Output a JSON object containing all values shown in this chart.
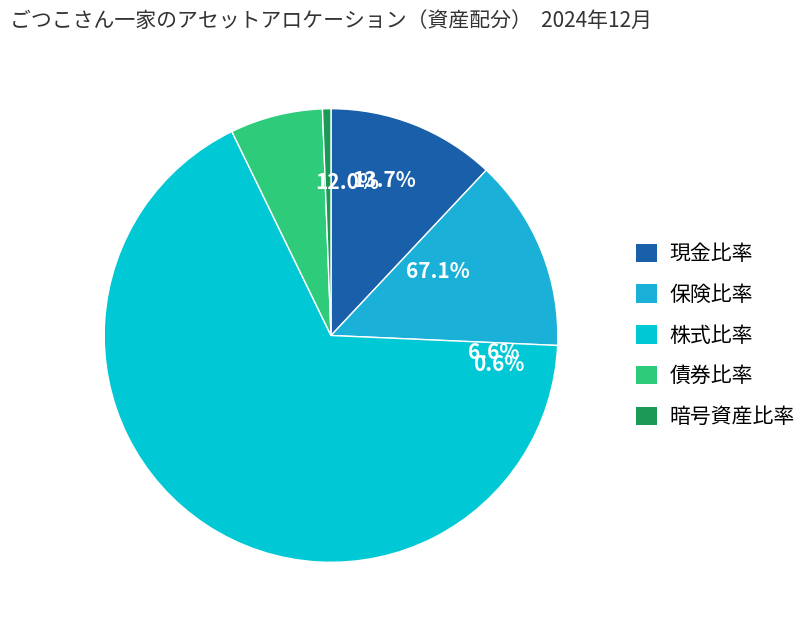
{
  "title": "ごつこさん一家のアセットアロケーション（資産配分）  2024年12月",
  "labels": [
    "現金比率",
    "保険比率",
    "株式比率",
    "債券比率",
    "暗号資産比率"
  ],
  "values": [
    12.0,
    13.7,
    67.1,
    6.6,
    0.6
  ],
  "colors": [
    "#1a5faa",
    "#1ab0d8",
    "#00c8d4",
    "#2ecc7a",
    "#1a9a55"
  ],
  "pct_labels": [
    "12.0%",
    "13.7%",
    "67.1%",
    "6.6%",
    "0.6%"
  ],
  "pct_radii": [
    0.68,
    0.72,
    0.55,
    0.72,
    0.75
  ],
  "background_color": "#ffffff",
  "title_fontsize": 15,
  "pct_fontsize": 15,
  "legend_fontsize": 15,
  "startangle": 90
}
